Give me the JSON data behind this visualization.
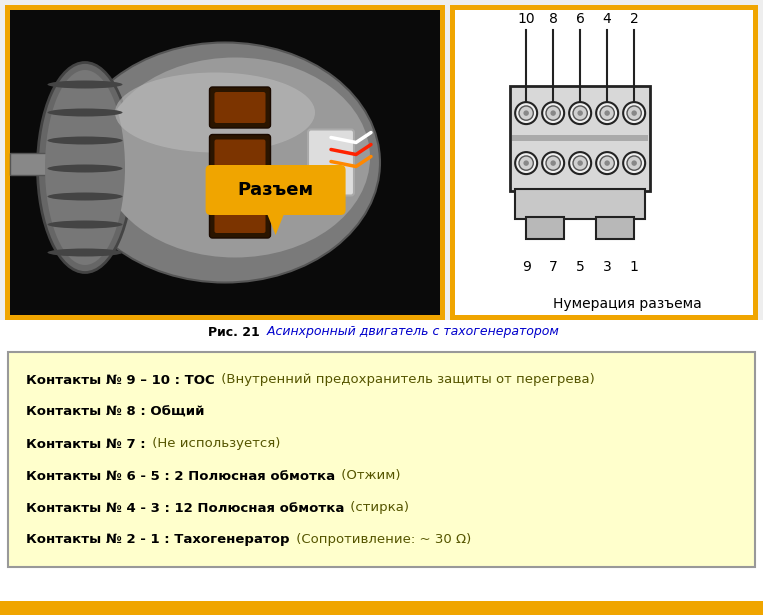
{
  "bg_color": "#ffffff",
  "photo_border_color": "#f0a500",
  "diagram_border_color": "#f0a500",
  "info_box_bg": "#ffffcc",
  "info_box_border": "#999999",
  "caption_bold": "Рис. 21",
  "caption_italic": " Асинхронный двигатель с тахогенератором",
  "caption_color_bold": "#000000",
  "caption_color_italic": "#0000cc",
  "connector_label": "Разъем",
  "connector_label_bg": "#f0a500",
  "diagram_label": "Нумерация разъема",
  "top_numbers": [
    "10",
    "8",
    "6",
    "4",
    "2"
  ],
  "bottom_numbers": [
    "9",
    "7",
    "5",
    "3",
    "1"
  ],
  "info_lines": [
    {
      "bold": "Контакты № 9 – 10 : ТОС",
      "normal": " (Внутренний предохранитель защиты от перегрева)"
    },
    {
      "bold": "Контакты № 8 : Общий",
      "normal": ""
    },
    {
      "bold": "Контакты № 7 :",
      "normal": " (Не используется)"
    },
    {
      "bold": "Контакты № 6 - 5 : 2 Полюсная обмотка",
      "normal": " (Отжим)"
    },
    {
      "bold": "Контакты № 4 - 3 : 12 Полюсная обмотка",
      "normal": " (стирка)"
    },
    {
      "bold": "Контакты № 2 - 1 : Тахогенератор",
      "normal": " (Сопротивление: ~ 30 Ω)"
    }
  ],
  "bold_color": "#000000",
  "normal_color": "#555500",
  "bottom_bar_color": "#f0a500",
  "fig_width": 7.63,
  "fig_height": 6.15,
  "dpi": 100
}
